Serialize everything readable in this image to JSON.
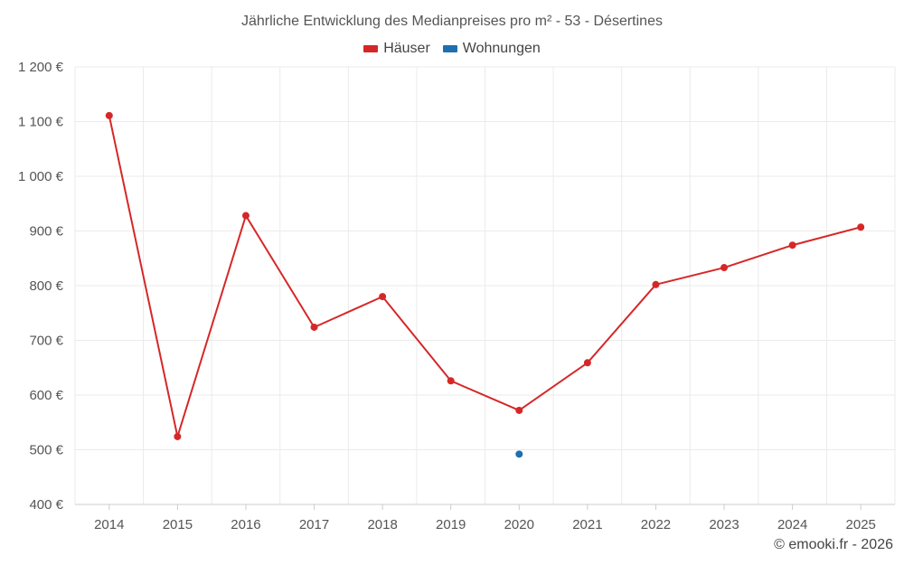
{
  "chart_data": {
    "type": "line",
    "title": "Jährliche Entwicklung des Medianpreises pro m² - 53 - Désertines",
    "categories": [
      "2014",
      "2015",
      "2016",
      "2017",
      "2018",
      "2019",
      "2020",
      "2021",
      "2022",
      "2023",
      "2024",
      "2025"
    ],
    "series": [
      {
        "name": "Häuser",
        "color": "#d62728",
        "values": [
          1111,
          524,
          928,
          724,
          780,
          626,
          572,
          659,
          802,
          833,
          874,
          907
        ]
      },
      {
        "name": "Wohnungen",
        "color": "#1f6fb0",
        "values": [
          null,
          null,
          null,
          null,
          null,
          null,
          492,
          null,
          null,
          null,
          null,
          null
        ]
      }
    ],
    "ylim": [
      400,
      1200
    ],
    "yticks": [
      400,
      500,
      600,
      700,
      800,
      900,
      1000,
      1100,
      1200
    ],
    "ytick_labels": [
      "400 €",
      "500 €",
      "600 €",
      "700 €",
      "800 €",
      "900 €",
      "1 000 €",
      "1 100 €",
      "1 200 €"
    ],
    "grid": true,
    "legend_position": "top-center"
  },
  "credit": "© emooki.fr - 2026"
}
